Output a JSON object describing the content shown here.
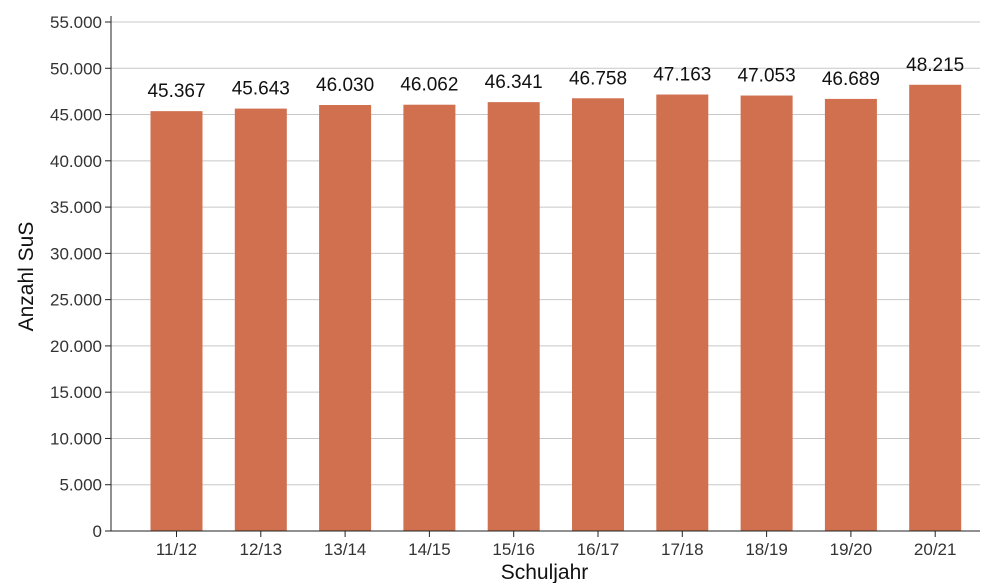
{
  "chart_data": {
    "type": "bar",
    "categories": [
      "11/12",
      "12/13",
      "13/14",
      "14/15",
      "15/16",
      "16/17",
      "17/18",
      "18/19",
      "19/20",
      "20/21"
    ],
    "values": [
      45367,
      45643,
      46030,
      46062,
      46341,
      46758,
      47163,
      47053,
      46689,
      48215
    ],
    "value_labels": [
      "45.367",
      "45.643",
      "46.030",
      "46.062",
      "46.341",
      "46.758",
      "47.163",
      "47.053",
      "46.689",
      "48.215"
    ],
    "ylim": [
      0,
      55000
    ],
    "yticks": [
      0,
      5000,
      10000,
      15000,
      20000,
      25000,
      30000,
      35000,
      40000,
      45000,
      50000,
      55000
    ],
    "ytick_labels": [
      "0",
      "5.000",
      "10.000",
      "15.000",
      "20.000",
      "25.000",
      "30.000",
      "35.000",
      "40.000",
      "45.000",
      "50.000",
      "55.000"
    ],
    "xlabel": "Schuljahr",
    "ylabel": "Anzahl SuS",
    "grid": true,
    "colors": {
      "bar": "#d0704f"
    }
  }
}
